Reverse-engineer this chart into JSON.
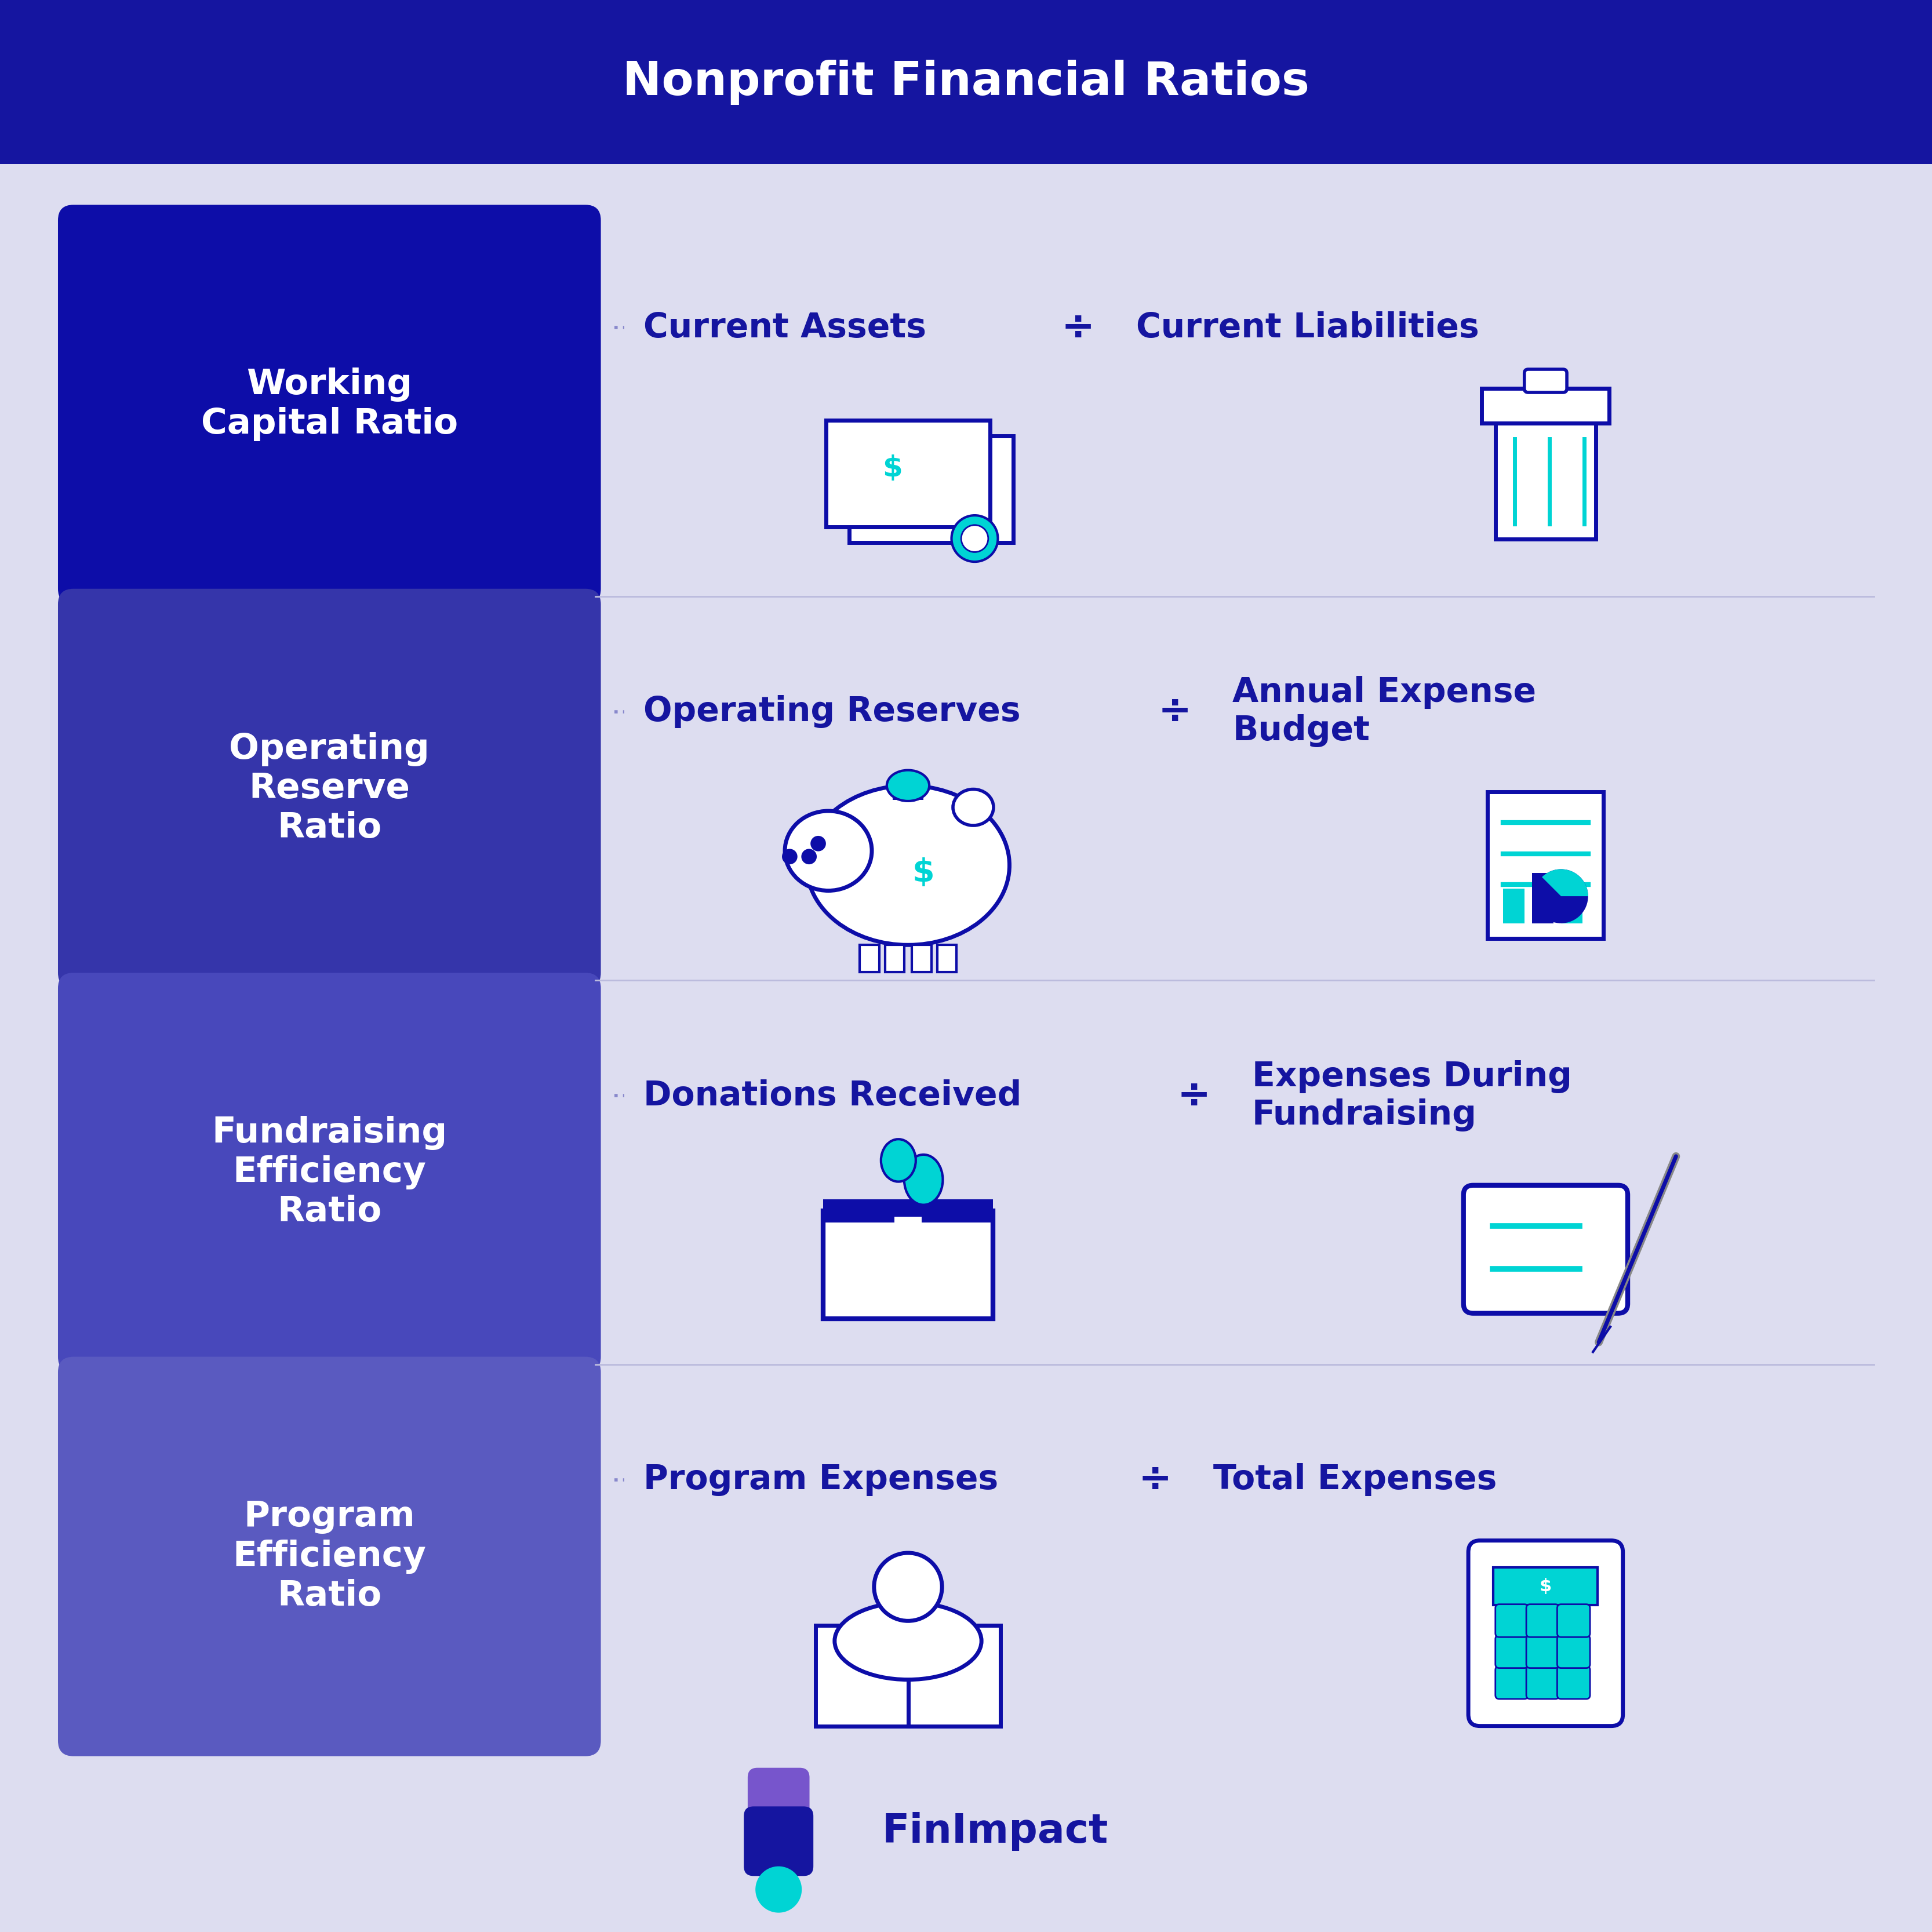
{
  "title": "Nonprofit Financial Ratios",
  "title_bg_color": "#1515a0",
  "title_text_color": "#ffffff",
  "bg_color": "#ddddf0",
  "left_panel_colors": [
    "#0d0da8",
    "#3535aa",
    "#4848bb",
    "#5a5ac0"
  ],
  "left_panel_labels": [
    "Working\nCapital Ratio",
    "Operating\nReserve\nRatio",
    "Fundraising\nEfficiency\nRatio",
    "Program\nEfficiency\nRatio"
  ],
  "row_labels_left": [
    "Current Assets",
    "Operating Reserves",
    "Donations Received",
    "Program Expenses"
  ],
  "row_labels_right": [
    "Current Liabilities",
    "Annual Expense\nBudget",
    "Expenses During\nFundraising",
    "Total Expenses"
  ],
  "divider_symbol": "÷",
  "dot_color": "#8888cc",
  "text_color_dark": "#1515a0",
  "icon_color": "#0d0da8",
  "accent_color": "#00d4d4",
  "logo_text": "FinImpact",
  "logo_color": "#1515a0",
  "logo_accent": "#00d4d4",
  "logo_icon_color1": "#7755cc",
  "logo_icon_color2": "#1515a0"
}
